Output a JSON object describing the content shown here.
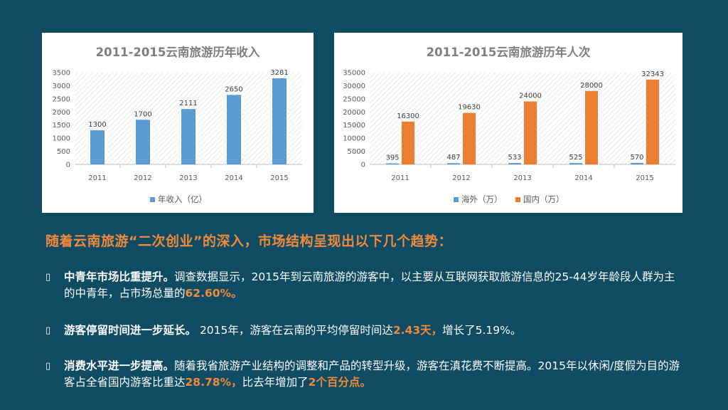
{
  "chart_data": [
    {
      "type": "bar",
      "title": "2011-2015云南旅游历年收入",
      "categories": [
        "2011",
        "2012",
        "2013",
        "2014",
        "2015"
      ],
      "series": [
        {
          "name": "年收入（亿）",
          "values": [
            1300,
            1700,
            2111,
            2650,
            3281
          ]
        }
      ],
      "ylim": [
        0,
        3500
      ],
      "yticks": [
        0,
        500,
        1000,
        1500,
        2000,
        2500,
        3000,
        3500
      ],
      "grid": "diagonal-hatch",
      "legend": "bottom",
      "colors": {
        "series": [
          "#5b9bd5"
        ]
      }
    },
    {
      "type": "bar",
      "title": "2011-2015云南旅游历年人次",
      "categories": [
        "2011",
        "2012",
        "2013",
        "2014",
        "2015"
      ],
      "series": [
        {
          "name": "海外（万）",
          "values": [
            395,
            487,
            533,
            525,
            570
          ]
        },
        {
          "name": "国内（万）",
          "values": [
            16300,
            19630,
            24000,
            28000,
            32343
          ]
        }
      ],
      "ylim": [
        0,
        35000
      ],
      "yticks": [
        0,
        5000,
        10000,
        15000,
        20000,
        25000,
        30000,
        35000
      ],
      "grid": "diagonal-hatch",
      "legend": "bottom",
      "colors": {
        "series": [
          "#5b9bd5",
          "#ed7d31"
        ]
      }
    }
  ],
  "subheading": "随着云南旅游“二次创业”的深入，市场结构呈现出以下几个趋势：",
  "bullets": [
    {
      "marker": "▯",
      "lead": "中青年市场比重提升。",
      "text1": "调查数据显示，2015年到云南旅游的游客中，以主要从互联网获取旅游信息的25-44岁年龄段人群为主的中青年，占市场总量的",
      "hl1": "62.60%。"
    },
    {
      "marker": "▯",
      "lead": "游客停留时间进一步延长。",
      "text1": " 2015年，游客在云南的平均停留时间达",
      "hl1": "2.43天，",
      "text2": "增长了5.19%。"
    },
    {
      "marker": "▯",
      "lead": "消费水平进一步提高。",
      "text1": "随着我省旅游产业结构的调整和产品的转型升级，游客在滇花费不断提高。2015年以休闲/度假为目的游客占全省国内游客比重达",
      "hl1": "28.78%，",
      "text2": "比去年增加了",
      "hl2": "2个百分点。"
    }
  ],
  "colors": {
    "background": "#0f4b63",
    "accent": "#f28a3b",
    "card": "#ffffff"
  }
}
